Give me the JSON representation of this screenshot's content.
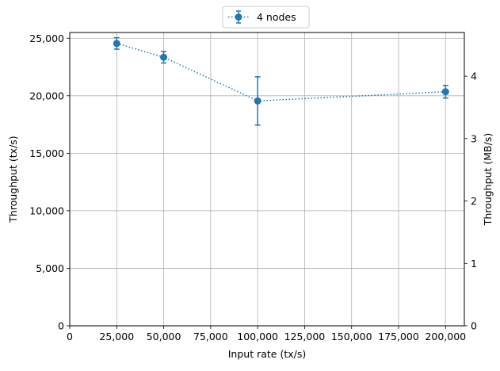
{
  "chart_data": {
    "type": "line",
    "title": "",
    "xlabel": "Input rate (tx/s)",
    "ylabel": "Throughput (tx/s)",
    "y2label": "Throughput (MB/s)",
    "xlim": [
      0,
      210000
    ],
    "ylim": [
      0,
      25500
    ],
    "y2lim": [
      0,
      4.7
    ],
    "grid": true,
    "legend_position": "top-center",
    "x_ticks": [
      0,
      25000,
      50000,
      75000,
      100000,
      125000,
      150000,
      175000,
      200000
    ],
    "x_tick_labels": [
      "0",
      "25,000",
      "50,000",
      "75,000",
      "100,000",
      "125,000",
      "150,000",
      "175,000",
      "200,000"
    ],
    "y_ticks": [
      0,
      5000,
      10000,
      15000,
      20000,
      25000
    ],
    "y_tick_labels": [
      "0",
      "5,000",
      "10,000",
      "15,000",
      "20,000",
      "25,000"
    ],
    "y2_ticks": [
      0,
      1,
      2,
      3,
      4
    ],
    "y2_tick_labels": [
      "0",
      "1",
      "2",
      "3",
      "4"
    ],
    "series": [
      {
        "name": "4 nodes",
        "color": "#1f77b4",
        "line_style": "dotted",
        "marker": "circle",
        "x": [
          25000,
          50000,
          100000,
          200000
        ],
        "y": [
          24550,
          23350,
          19550,
          20350
        ],
        "y_err": [
          500,
          500,
          2100,
          550
        ]
      }
    ]
  }
}
